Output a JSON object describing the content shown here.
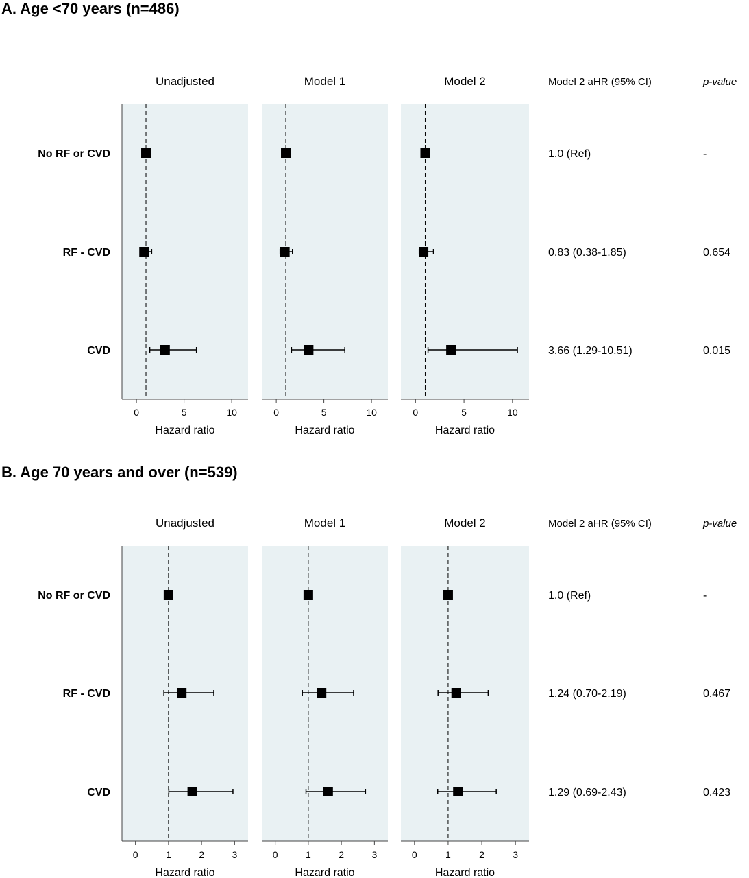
{
  "colors": {
    "panel_bg": "#e9f1f3",
    "marker": "#000000",
    "refline": "#000000"
  },
  "column_headers": {
    "estimate": "Model 2 aHR (95% CI)",
    "pvalue": "p-value"
  },
  "chart_data": [
    {
      "type": "forest",
      "title": "A. Age <70 years (n=486)",
      "rows": [
        "No RF or CVD",
        "RF - CVD",
        "CVD"
      ],
      "xlabel": "Hazard ratio",
      "xlim": [
        -0.8,
        11
      ],
      "xticks": [
        0,
        5,
        10
      ],
      "tick_labels": [
        "0",
        "5",
        "10"
      ],
      "reference_line": 1,
      "panels": [
        {
          "name": "Unadjusted",
          "points": [
            {
              "hr": 1.0,
              "lo": null,
              "hi": null
            },
            {
              "hr": 0.8,
              "lo": 0.4,
              "hi": 1.6
            },
            {
              "hr": 3.0,
              "lo": 1.4,
              "hi": 6.3
            }
          ]
        },
        {
          "name": "Model 1",
          "points": [
            {
              "hr": 1.0,
              "lo": null,
              "hi": null
            },
            {
              "hr": 0.9,
              "lo": 0.4,
              "hi": 1.7
            },
            {
              "hr": 3.4,
              "lo": 1.6,
              "hi": 7.2
            }
          ]
        },
        {
          "name": "Model 2",
          "points": [
            {
              "hr": 1.0,
              "lo": null,
              "hi": null
            },
            {
              "hr": 0.83,
              "lo": 0.38,
              "hi": 1.85
            },
            {
              "hr": 3.66,
              "lo": 1.29,
              "hi": 10.51
            }
          ]
        }
      ],
      "estimates": [
        "1.0 (Ref)",
        "0.83 (0.38-1.85)",
        "3.66 (1.29-10.51)"
      ],
      "pvalues": [
        "-",
        "0.654",
        "0.015"
      ]
    },
    {
      "type": "forest",
      "title": "B. Age 70 years and over (n=539)",
      "rows": [
        "No RF or CVD",
        "RF - CVD",
        "CVD"
      ],
      "xlabel": "Hazard ratio",
      "xlim": [
        -0.2,
        3.2
      ],
      "xticks": [
        0,
        1,
        2,
        3
      ],
      "tick_labels": [
        "0",
        "1",
        "2",
        "3"
      ],
      "reference_line": 1,
      "panels": [
        {
          "name": "Unadjusted",
          "points": [
            {
              "hr": 1.0,
              "lo": null,
              "hi": null
            },
            {
              "hr": 1.4,
              "lo": 0.86,
              "hi": 2.37
            },
            {
              "hr": 1.72,
              "lo": 1.01,
              "hi": 2.95
            }
          ]
        },
        {
          "name": "Model 1",
          "points": [
            {
              "hr": 1.0,
              "lo": null,
              "hi": null
            },
            {
              "hr": 1.4,
              "lo": 0.82,
              "hi": 2.37
            },
            {
              "hr": 1.6,
              "lo": 0.93,
              "hi": 2.73
            }
          ]
        },
        {
          "name": "Model 2",
          "points": [
            {
              "hr": 1.0,
              "lo": null,
              "hi": null
            },
            {
              "hr": 1.24,
              "lo": 0.7,
              "hi": 2.19
            },
            {
              "hr": 1.29,
              "lo": 0.69,
              "hi": 2.43
            }
          ]
        }
      ],
      "estimates": [
        "1.0 (Ref)",
        "1.24 (0.70-2.19)",
        "1.29 (0.69-2.43)"
      ],
      "pvalues": [
        "-",
        "0.467",
        "0.423"
      ]
    }
  ]
}
